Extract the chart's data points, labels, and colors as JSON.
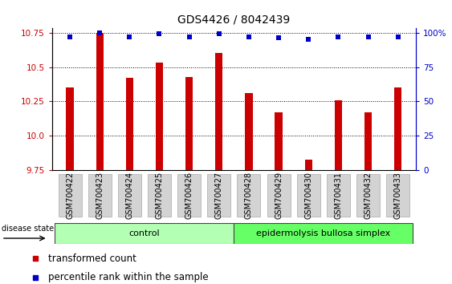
{
  "title": "GDS4426 / 8042439",
  "samples": [
    "GSM700422",
    "GSM700423",
    "GSM700424",
    "GSM700425",
    "GSM700426",
    "GSM700427",
    "GSM700428",
    "GSM700429",
    "GSM700430",
    "GSM700431",
    "GSM700432",
    "GSM700433"
  ],
  "bar_values": [
    10.35,
    10.75,
    10.42,
    10.53,
    10.43,
    10.6,
    10.31,
    10.17,
    9.83,
    10.26,
    10.17,
    10.35
  ],
  "percentile_values": [
    97,
    100,
    97,
    99,
    97,
    99,
    97,
    96,
    95,
    97,
    97,
    97
  ],
  "ylim": [
    9.75,
    10.78
  ],
  "yticks_left": [
    9.75,
    10.0,
    10.25,
    10.5,
    10.75
  ],
  "yticks_right": [
    0,
    25,
    50,
    75,
    100
  ],
  "bar_color": "#cc0000",
  "percentile_color": "#0000cc",
  "control_color": "#b3ffb3",
  "ebs_color": "#66ff66",
  "group_label_control": "control",
  "group_label_ebs": "epidermolysis bullosa simplex",
  "disease_state_label": "disease state",
  "legend_bar_label": "transformed count",
  "legend_pct_label": "percentile rank within the sample",
  "n_control": 6,
  "n_ebs": 6,
  "title_fontsize": 10,
  "tick_fontsize": 7.5,
  "label_fontsize": 8.5,
  "xtick_fontsize": 7,
  "bar_width": 0.25
}
